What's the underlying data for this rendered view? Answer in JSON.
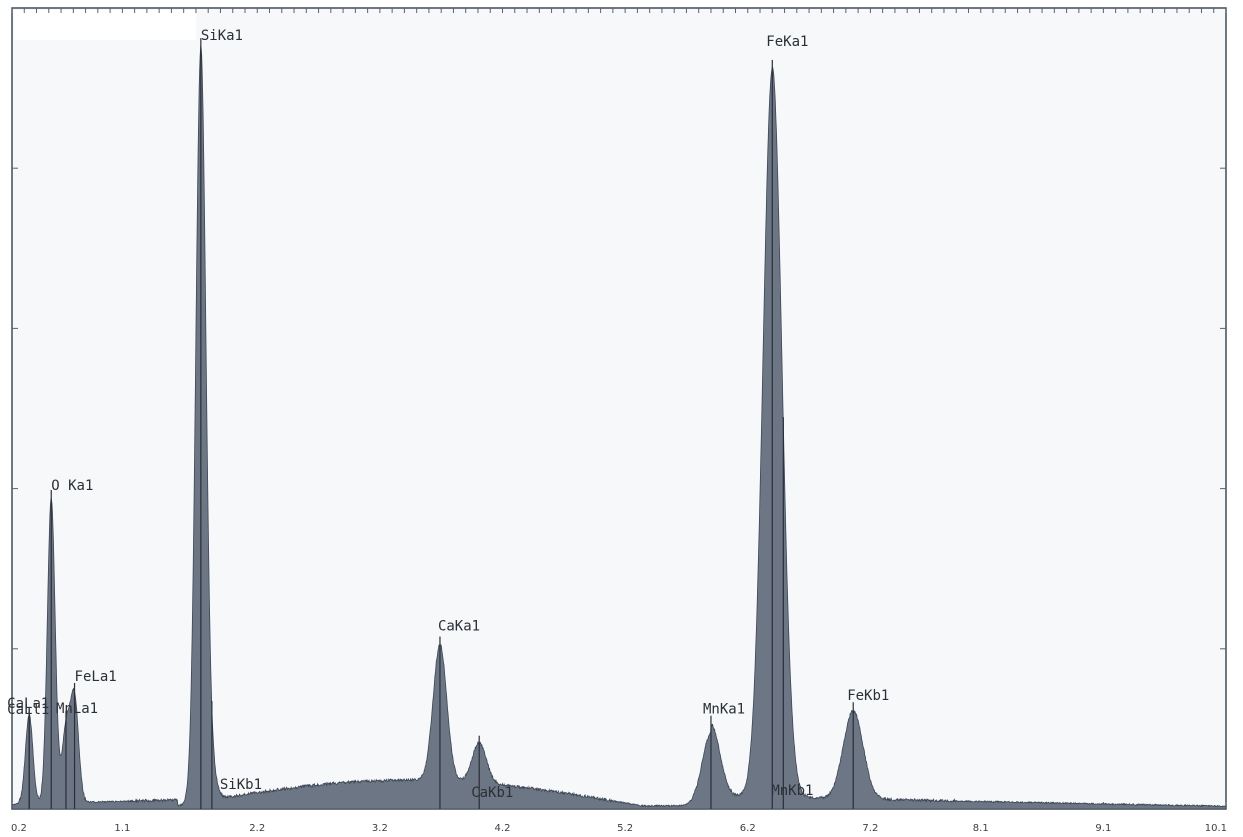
{
  "chart_data": {
    "type": "line",
    "title": "",
    "xlabel": "",
    "ylabel": "",
    "xlim": [
      0.2,
      10.1
    ],
    "ylim": [
      0,
      100
    ],
    "x_ticks": [
      0.2,
      1.1,
      2.2,
      3.2,
      4.2,
      5.2,
      6.2,
      7.2,
      8.1,
      9.1,
      10.1
    ],
    "x_tick_labels": [
      "0.2",
      "1.1",
      "2.2",
      "3.2",
      "4.2",
      "5.2",
      "6.2",
      "7.2",
      "8.1",
      "9.1",
      "10.1"
    ],
    "y_ticks": [
      20,
      40,
      60,
      80
    ],
    "grid": false,
    "peaks": [
      {
        "label": "O Ka1",
        "energy": 0.52,
        "intensity": 38
      },
      {
        "label": "CaLl1",
        "energy": 0.34,
        "intensity": 4
      },
      {
        "label": "CaLa1",
        "energy": 0.34,
        "intensity": 7
      },
      {
        "label": "MnLa1",
        "energy": 0.64,
        "intensity": 9
      },
      {
        "label": "FeLa1",
        "energy": 0.71,
        "intensity": 13
      },
      {
        "label": "SiKa1",
        "energy": 1.74,
        "intensity": 94
      },
      {
        "label": "SiKb1",
        "energy": 1.83,
        "intensity": 3
      },
      {
        "label": "CaKa1",
        "energy": 3.69,
        "intensity": 17
      },
      {
        "label": "CaKb1",
        "energy": 4.01,
        "intensity": 5
      },
      {
        "label": "MnKa1",
        "energy": 5.9,
        "intensity": 9
      },
      {
        "label": "MnKb1",
        "energy": 6.49,
        "intensity": 2
      },
      {
        "label": "FeKa1",
        "energy": 6.4,
        "intensity": 90
      },
      {
        "label": "FeKb1",
        "energy": 7.06,
        "intensity": 11
      }
    ]
  }
}
